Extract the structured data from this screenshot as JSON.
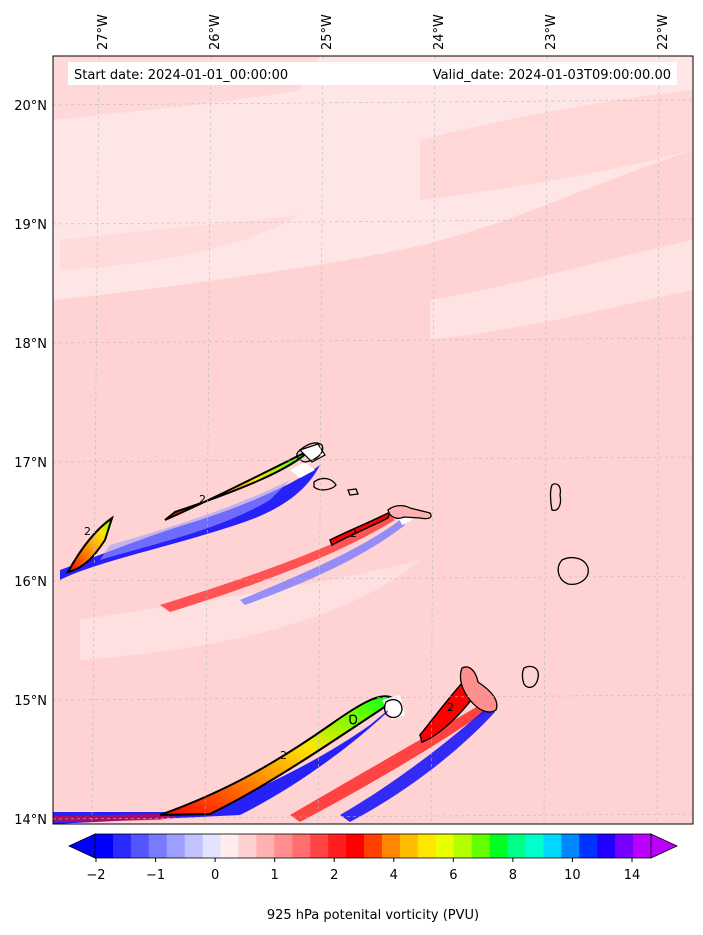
{
  "header": {
    "start_date": "Start date: 2024-01-01_00:00:00",
    "valid_date": "Valid_date: 2024-01-03T09:00:00.00"
  },
  "map": {
    "lon_labels": [
      "27°W",
      "26°W",
      "25°W",
      "24°W",
      "23°W",
      "22°W"
    ],
    "lat_labels": [
      "20°N",
      "19°N",
      "18°N",
      "17°N",
      "16°N",
      "15°N",
      "14°N"
    ],
    "contour_label": "2",
    "colors": {
      "background_pv": "#ffe6e6",
      "low_positive": "#ffd0d0",
      "frame": "#000000",
      "grid": "#bbbbbb"
    }
  },
  "colorbar": {
    "title": "925 hPa potenital vorticity (PVU)",
    "tick_labels": [
      "−2",
      "−1",
      "0",
      "1",
      "2",
      "4",
      "6",
      "8",
      "10",
      "14"
    ],
    "colors": [
      "#0000ff",
      "#2b2bff",
      "#5555ff",
      "#7a7aff",
      "#9e9eff",
      "#c2c2ff",
      "#e3e3ff",
      "#ffecec",
      "#ffd0d0",
      "#ffb0b0",
      "#ff8f8f",
      "#ff6f6f",
      "#ff4444",
      "#ff1e1e",
      "#ff0000",
      "#ff4000",
      "#ff8800",
      "#ffbb00",
      "#ffe600",
      "#e8ff00",
      "#b4ff00",
      "#66ff00",
      "#00ff22",
      "#00ff88",
      "#00ffcc",
      "#00d8ff",
      "#0088ff",
      "#0033ff",
      "#2200ff",
      "#7700ff",
      "#bb00ff"
    ],
    "extend_low_color": "#0000ff",
    "extend_high_color": "#bb00ff"
  }
}
